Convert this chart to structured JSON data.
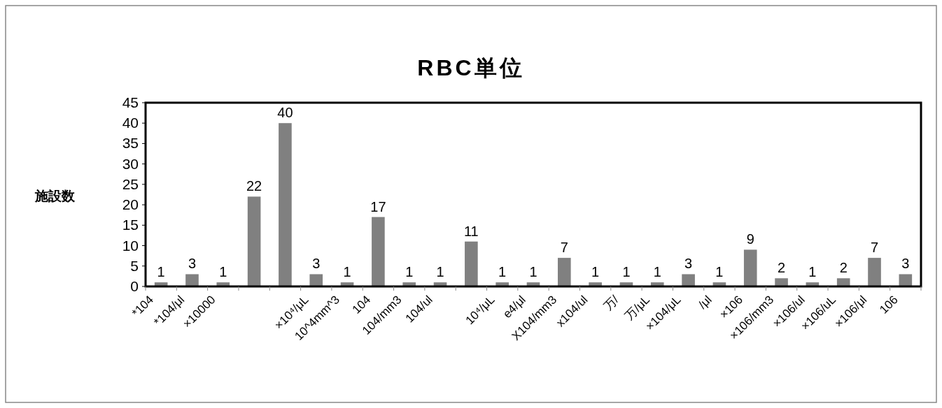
{
  "chart_data": {
    "type": "bar",
    "title": "RBC単位",
    "ylabel": "施設数",
    "categories": [
      "*104",
      "*104/μl",
      "×10000",
      null,
      null,
      "×10⁴/μL",
      "10^4mm^3",
      "104",
      "104/mm3",
      "104/ul",
      null,
      "10⁴/μL",
      "e4/μl",
      "X104/mm3",
      "x104/ul",
      "万/",
      "万/μL",
      "×104/μL",
      "/μl",
      "×106",
      "×106/mm3",
      "×106/ul",
      "×106/uL",
      "×106/μl",
      "106"
    ],
    "values": [
      1,
      3,
      1,
      22,
      40,
      3,
      1,
      17,
      1,
      1,
      11,
      1,
      1,
      7,
      1,
      1,
      1,
      3,
      1,
      9,
      2,
      1,
      2,
      7,
      3
    ],
    "color": "#808080",
    "ylim": [
      0,
      45
    ],
    "yticks": [
      0,
      5,
      10,
      15,
      20,
      25,
      30,
      35,
      40,
      45
    ],
    "data_labels": true
  }
}
